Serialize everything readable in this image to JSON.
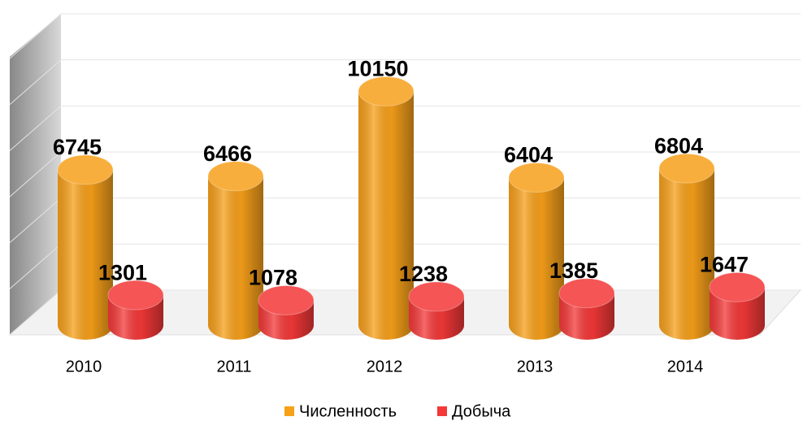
{
  "chart_data": {
    "type": "bar",
    "categories": [
      "2010",
      "2011",
      "2012",
      "2013",
      "2014"
    ],
    "series": [
      {
        "name": "Численность",
        "color": "#f7a01a",
        "values": [
          6745,
          6466,
          10150,
          6404,
          6804
        ]
      },
      {
        "name": "Добыча",
        "color": "#f43838",
        "values": [
          1301,
          1078,
          1238,
          1385,
          1647
        ]
      }
    ],
    "ylim": [
      0,
      12000
    ],
    "yticks": [
      0,
      2000,
      4000,
      6000,
      8000,
      10000,
      12000
    ],
    "grid": true,
    "legend": "bottom"
  }
}
